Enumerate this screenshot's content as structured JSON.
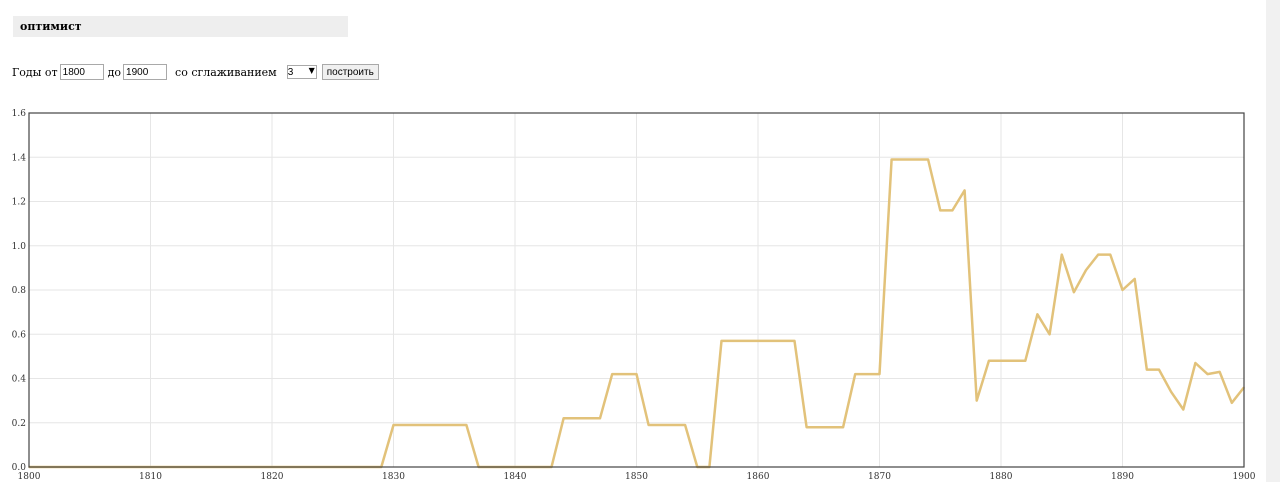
{
  "header": {
    "word": "оптимист"
  },
  "controls": {
    "from_label": "Годы от",
    "from_value": "1800",
    "to_label": "до",
    "to_value": "1900",
    "smoothing_label": "со сглаживанием",
    "smoothing_value": "3",
    "submit_label": "построить"
  },
  "colors": {
    "line": "#e2c27a",
    "grid": "#e6e6e6",
    "frame": "#444444"
  },
  "chart_data": {
    "type": "line",
    "xlim": [
      1800,
      1900
    ],
    "ylim": [
      0,
      1.6
    ],
    "xticks": [
      "1800",
      "1810",
      "1820",
      "1830",
      "1840",
      "1850",
      "1860",
      "1870",
      "1880",
      "1890",
      "1900"
    ],
    "yticks": [
      "0.0",
      "0.2",
      "0.4",
      "0.6",
      "0.8",
      "1.0",
      "1.2",
      "1.4",
      "1.6"
    ],
    "grid": true,
    "series": [
      {
        "x": [
          1800,
          1829,
          1830,
          1836,
          1837,
          1843,
          1844,
          1847,
          1848,
          1850,
          1851,
          1854,
          1855,
          1856,
          1857,
          1863,
          1864,
          1867,
          1868,
          1870,
          1871,
          1874,
          1875,
          1876,
          1877,
          1878,
          1879,
          1882,
          1883,
          1884,
          1885,
          1886,
          1887,
          1888,
          1889,
          1890,
          1891,
          1892,
          1893,
          1894,
          1895,
          1896,
          1897,
          1898,
          1899,
          1900
        ],
        "y": [
          0,
          0,
          0.19,
          0.19,
          0,
          0,
          0.22,
          0.22,
          0.42,
          0.42,
          0.19,
          0.19,
          0,
          0,
          0.57,
          0.57,
          0.18,
          0.18,
          0.42,
          0.42,
          1.39,
          1.39,
          1.16,
          1.16,
          1.25,
          0.3,
          0.48,
          0.48,
          0.69,
          0.6,
          0.96,
          0.79,
          0.89,
          0.96,
          0.96,
          0.8,
          0.85,
          0.44,
          0.44,
          0.34,
          0.26,
          0.47,
          0.42,
          0.43,
          0.29,
          0.36
        ]
      }
    ]
  }
}
